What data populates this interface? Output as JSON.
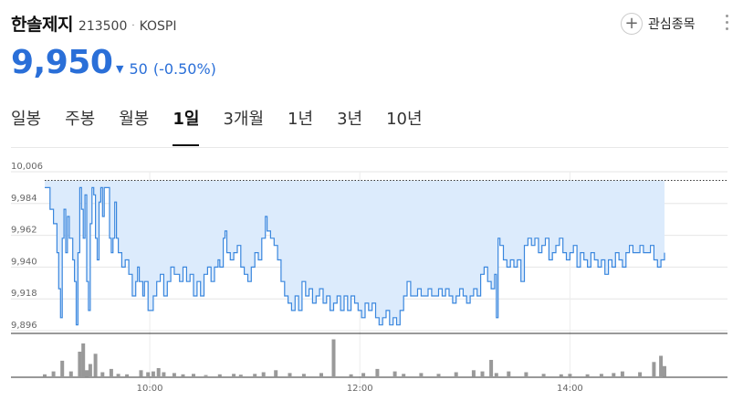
{
  "stock": {
    "name": "한솔제지",
    "code": "213500",
    "separator": "·",
    "market": "KOSPI",
    "favorite_label": "관심종목",
    "favorite_icon": "plus-icon",
    "more_icon": "vertical-ellipsis-icon"
  },
  "quote": {
    "price": "9,950",
    "change_dir": "down",
    "change": "50",
    "change_pct": "(-0.50%)",
    "color": "#2a6fd8"
  },
  "tabs": [
    {
      "label": "일봉",
      "active": false
    },
    {
      "label": "주봉",
      "active": false
    },
    {
      "label": "월봉",
      "active": false
    },
    {
      "label": "1일",
      "active": true
    },
    {
      "label": "3개월",
      "active": false
    },
    {
      "label": "1년",
      "active": false
    },
    {
      "label": "3년",
      "active": false
    },
    {
      "label": "10년",
      "active": false
    }
  ],
  "chart_data": {
    "type": "area",
    "x_unit": "time of day",
    "x_start": "09:00",
    "x_end": "15:30",
    "xticks": [
      "10:00",
      "12:00",
      "14:00"
    ],
    "yticks": [
      10006,
      9984,
      9962,
      9940,
      9918,
      9896
    ],
    "ytick_labels": [
      "10,006",
      "9,984",
      "9,962",
      "9,940",
      "9,918",
      "9,896"
    ],
    "ylim": [
      9896,
      10006
    ],
    "reference_line": 10000,
    "grid": true,
    "line_color": "#3a87de",
    "fill_color": "#dcebfc",
    "volume_color": "#999999",
    "price": [
      [
        "09:00",
        9995
      ],
      [
        "09:03",
        9980
      ],
      [
        "09:05",
        9970
      ],
      [
        "09:07",
        9950
      ],
      [
        "09:08",
        9925
      ],
      [
        "09:09",
        9905
      ],
      [
        "09:10",
        9960
      ],
      [
        "09:11",
        9980
      ],
      [
        "09:12",
        9950
      ],
      [
        "09:13",
        9975
      ],
      [
        "09:14",
        9960
      ],
      [
        "09:16",
        9945
      ],
      [
        "09:17",
        9930
      ],
      [
        "09:18",
        9900
      ],
      [
        "09:19",
        9950
      ],
      [
        "09:20",
        9995
      ],
      [
        "09:21",
        9980
      ],
      [
        "09:22",
        9960
      ],
      [
        "09:23",
        9990
      ],
      [
        "09:24",
        9930
      ],
      [
        "09:25",
        9910
      ],
      [
        "09:26",
        9970
      ],
      [
        "09:27",
        9995
      ],
      [
        "09:28",
        9990
      ],
      [
        "09:29",
        9960
      ],
      [
        "09:30",
        9945
      ],
      [
        "09:31",
        9985
      ],
      [
        "09:32",
        9995
      ],
      [
        "09:33",
        9975
      ],
      [
        "09:34",
        9995
      ],
      [
        "09:36",
        9995
      ],
      [
        "09:37",
        9960
      ],
      [
        "09:38",
        9950
      ],
      [
        "09:39",
        9960
      ],
      [
        "09:40",
        9985
      ],
      [
        "09:41",
        9960
      ],
      [
        "09:42",
        9950
      ],
      [
        "09:44",
        9940
      ],
      [
        "09:46",
        9945
      ],
      [
        "09:48",
        9935
      ],
      [
        "09:50",
        9920
      ],
      [
        "09:52",
        9930
      ],
      [
        "09:53",
        9940
      ],
      [
        "09:54",
        9930
      ],
      [
        "09:56",
        9920
      ],
      [
        "09:57",
        9930
      ],
      [
        "09:59",
        9910
      ],
      [
        "10:02",
        9920
      ],
      [
        "10:04",
        9930
      ],
      [
        "10:06",
        9935
      ],
      [
        "10:08",
        9920
      ],
      [
        "10:10",
        9930
      ],
      [
        "10:12",
        9940
      ],
      [
        "10:14",
        9935
      ],
      [
        "10:17",
        9930
      ],
      [
        "10:19",
        9940
      ],
      [
        "10:21",
        9930
      ],
      [
        "10:23",
        9935
      ],
      [
        "10:25",
        9920
      ],
      [
        "10:27",
        9930
      ],
      [
        "10:29",
        9920
      ],
      [
        "10:31",
        9935
      ],
      [
        "10:33",
        9940
      ],
      [
        "10:35",
        9930
      ],
      [
        "10:37",
        9940
      ],
      [
        "10:39",
        9945
      ],
      [
        "10:40",
        9940
      ],
      [
        "10:42",
        9960
      ],
      [
        "10:43",
        9965
      ],
      [
        "10:44",
        9950
      ],
      [
        "10:46",
        9945
      ],
      [
        "10:48",
        9950
      ],
      [
        "10:50",
        9955
      ],
      [
        "10:52",
        9940
      ],
      [
        "10:54",
        9935
      ],
      [
        "10:56",
        9930
      ],
      [
        "10:58",
        9940
      ],
      [
        "11:00",
        9950
      ],
      [
        "11:02",
        9945
      ],
      [
        "11:04",
        9960
      ],
      [
        "11:06",
        9975
      ],
      [
        "11:07",
        9965
      ],
      [
        "11:09",
        9960
      ],
      [
        "11:11",
        9955
      ],
      [
        "11:13",
        9945
      ],
      [
        "11:15",
        9930
      ],
      [
        "11:17",
        9920
      ],
      [
        "11:19",
        9915
      ],
      [
        "11:21",
        9910
      ],
      [
        "11:23",
        9920
      ],
      [
        "11:25",
        9910
      ],
      [
        "11:27",
        9930
      ],
      [
        "11:29",
        9920
      ],
      [
        "11:31",
        9925
      ],
      [
        "11:33",
        9915
      ],
      [
        "11:35",
        9920
      ],
      [
        "11:37",
        9925
      ],
      [
        "11:39",
        9915
      ],
      [
        "11:41",
        9920
      ],
      [
        "11:43",
        9910
      ],
      [
        "11:45",
        9915
      ],
      [
        "11:47",
        9920
      ],
      [
        "11:49",
        9910
      ],
      [
        "11:51",
        9920
      ],
      [
        "11:53",
        9910
      ],
      [
        "11:55",
        9920
      ],
      [
        "11:57",
        9915
      ],
      [
        "11:59",
        9910
      ],
      [
        "12:01",
        9905
      ],
      [
        "12:03",
        9915
      ],
      [
        "12:05",
        9910
      ],
      [
        "12:07",
        9915
      ],
      [
        "12:09",
        9905
      ],
      [
        "12:11",
        9900
      ],
      [
        "12:13",
        9905
      ],
      [
        "12:15",
        9910
      ],
      [
        "12:17",
        9900
      ],
      [
        "12:19",
        9905
      ],
      [
        "12:21",
        9900
      ],
      [
        "12:23",
        9910
      ],
      [
        "12:25",
        9920
      ],
      [
        "12:27",
        9930
      ],
      [
        "12:29",
        9920
      ],
      [
        "12:31",
        9920
      ],
      [
        "12:33",
        9925
      ],
      [
        "12:35",
        9920
      ],
      [
        "12:37",
        9920
      ],
      [
        "12:39",
        9925
      ],
      [
        "12:41",
        9920
      ],
      [
        "12:43",
        9920
      ],
      [
        "12:45",
        9925
      ],
      [
        "12:47",
        9920
      ],
      [
        "12:49",
        9925
      ],
      [
        "12:51",
        9920
      ],
      [
        "12:53",
        9915
      ],
      [
        "12:55",
        9920
      ],
      [
        "12:57",
        9925
      ],
      [
        "12:59",
        9920
      ],
      [
        "13:01",
        9915
      ],
      [
        "13:03",
        9920
      ],
      [
        "13:05",
        9925
      ],
      [
        "13:07",
        9920
      ],
      [
        "13:09",
        9935
      ],
      [
        "13:11",
        9940
      ],
      [
        "13:13",
        9930
      ],
      [
        "13:15",
        9925
      ],
      [
        "13:17",
        9935
      ],
      [
        "13:18",
        9905
      ],
      [
        "13:19",
        9960
      ],
      [
        "13:20",
        9955
      ],
      [
        "13:22",
        9945
      ],
      [
        "13:24",
        9940
      ],
      [
        "13:26",
        9945
      ],
      [
        "13:28",
        9940
      ],
      [
        "13:30",
        9945
      ],
      [
        "13:32",
        9930
      ],
      [
        "13:34",
        9955
      ],
      [
        "13:36",
        9960
      ],
      [
        "13:38",
        9955
      ],
      [
        "13:40",
        9960
      ],
      [
        "13:42",
        9950
      ],
      [
        "13:44",
        9955
      ],
      [
        "13:46",
        9960
      ],
      [
        "13:48",
        9945
      ],
      [
        "13:50",
        9950
      ],
      [
        "13:52",
        9955
      ],
      [
        "13:54",
        9960
      ],
      [
        "13:56",
        9950
      ],
      [
        "13:58",
        9945
      ],
      [
        "14:00",
        9950
      ],
      [
        "14:02",
        9955
      ],
      [
        "14:04",
        9940
      ],
      [
        "14:06",
        9950
      ],
      [
        "14:08",
        9945
      ],
      [
        "14:10",
        9940
      ],
      [
        "14:12",
        9950
      ],
      [
        "14:14",
        9945
      ],
      [
        "14:16",
        9940
      ],
      [
        "14:18",
        9945
      ],
      [
        "14:20",
        9935
      ],
      [
        "14:22",
        9945
      ],
      [
        "14:24",
        9940
      ],
      [
        "14:26",
        9950
      ],
      [
        "14:28",
        9945
      ],
      [
        "14:30",
        9940
      ],
      [
        "14:32",
        9950
      ],
      [
        "14:34",
        9955
      ],
      [
        "14:36",
        9950
      ],
      [
        "14:38",
        9950
      ],
      [
        "14:40",
        9955
      ],
      [
        "14:42",
        9950
      ],
      [
        "14:44",
        9950
      ],
      [
        "14:46",
        9955
      ],
      [
        "14:48",
        9945
      ],
      [
        "14:50",
        9940
      ],
      [
        "14:52",
        9945
      ],
      [
        "14:54",
        9950
      ]
    ],
    "volume": [
      [
        "09:00",
        0.05
      ],
      [
        "09:05",
        0.12
      ],
      [
        "09:10",
        0.38
      ],
      [
        "09:15",
        0.12
      ],
      [
        "09:20",
        0.6
      ],
      [
        "09:22",
        0.8
      ],
      [
        "09:24",
        0.15
      ],
      [
        "09:26",
        0.3
      ],
      [
        "09:29",
        0.55
      ],
      [
        "09:33",
        0.1
      ],
      [
        "09:38",
        0.18
      ],
      [
        "09:42",
        0.06
      ],
      [
        "09:47",
        0.05
      ],
      [
        "09:55",
        0.15
      ],
      [
        "09:59",
        0.1
      ],
      [
        "10:02",
        0.12
      ],
      [
        "10:05",
        0.2
      ],
      [
        "10:08",
        0.1
      ],
      [
        "10:14",
        0.08
      ],
      [
        "10:19",
        0.05
      ],
      [
        "10:25",
        0.06
      ],
      [
        "10:32",
        0.03
      ],
      [
        "10:40",
        0.05
      ],
      [
        "10:48",
        0.06
      ],
      [
        "10:52",
        0.04
      ],
      [
        "11:00",
        0.06
      ],
      [
        "11:05",
        0.1
      ],
      [
        "11:12",
        0.15
      ],
      [
        "11:20",
        0.08
      ],
      [
        "11:28",
        0.06
      ],
      [
        "11:38",
        0.08
      ],
      [
        "11:45",
        0.9
      ],
      [
        "11:55",
        0.05
      ],
      [
        "12:02",
        0.08
      ],
      [
        "12:10",
        0.18
      ],
      [
        "12:20",
        0.12
      ],
      [
        "12:25",
        0.06
      ],
      [
        "12:35",
        0.08
      ],
      [
        "12:45",
        0.06
      ],
      [
        "12:55",
        0.1
      ],
      [
        "13:05",
        0.15
      ],
      [
        "13:10",
        0.12
      ],
      [
        "13:15",
        0.4
      ],
      [
        "13:18",
        0.08
      ],
      [
        "13:25",
        0.12
      ],
      [
        "13:35",
        0.1
      ],
      [
        "13:45",
        0.06
      ],
      [
        "13:55",
        0.05
      ],
      [
        "14:00",
        0.06
      ],
      [
        "14:10",
        0.05
      ],
      [
        "14:18",
        0.06
      ],
      [
        "14:25",
        0.08
      ],
      [
        "14:30",
        0.12
      ],
      [
        "14:40",
        0.1
      ],
      [
        "14:48",
        0.35
      ],
      [
        "14:52",
        0.5
      ],
      [
        "14:54",
        0.25
      ]
    ]
  }
}
